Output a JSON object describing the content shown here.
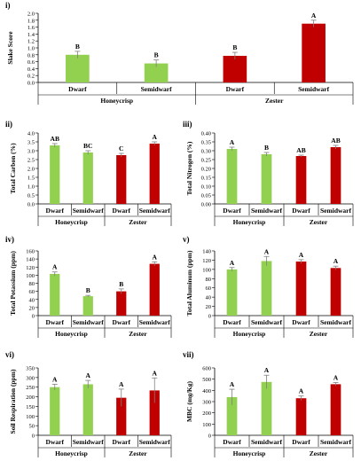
{
  "colors": {
    "honeycrisp": "#92d050",
    "zester": "#c00000",
    "error_bar": "#7f7f7f"
  },
  "chart_data": [
    {
      "id": "i",
      "panel_label": "i)",
      "type": "bar",
      "ylabel": "Slake Score",
      "ylim": [
        0,
        2
      ],
      "ytick_step": 0.2,
      "ytick_decimals": 1,
      "categories": [
        "Dwarf",
        "Semidwarf",
        "Dwarf",
        "Semidwarf"
      ],
      "groups": [
        "Honeycrisp",
        "Zester"
      ],
      "values": [
        0.8,
        0.55,
        0.77,
        1.7
      ],
      "errors": [
        0.1,
        0.1,
        0.1,
        0.1
      ],
      "letters": [
        "B",
        "B",
        "B",
        "A"
      ]
    },
    {
      "id": "ii",
      "panel_label": "ii)",
      "type": "bar",
      "ylabel": "Total Carbon (%)",
      "ylim": [
        0,
        4
      ],
      "ytick_step": 0.5,
      "ytick_decimals": 1,
      "categories": [
        "Dwarf",
        "Semidwarf",
        "Dwarf",
        "Semidwarf"
      ],
      "groups": [
        "Honeycrisp",
        "Zester"
      ],
      "values": [
        3.3,
        2.9,
        2.75,
        3.4
      ],
      "errors": [
        0.1,
        0.1,
        0.1,
        0.1
      ],
      "letters": [
        "AB",
        "BC",
        "C",
        "A"
      ]
    },
    {
      "id": "iii",
      "panel_label": "iii)",
      "type": "bar",
      "ylabel": "Total Nitrogen (%)",
      "ylim": [
        0,
        0.4
      ],
      "ytick_step": 0.05,
      "ytick_decimals": 2,
      "categories": [
        "Dwarf",
        "Semidwarf",
        "Dwarf",
        "Semidwarf"
      ],
      "groups": [
        "Honeycrisp",
        "Zester"
      ],
      "values": [
        0.31,
        0.28,
        0.27,
        0.32
      ],
      "errors": [
        0.01,
        0.01,
        0.005,
        0.01
      ],
      "letters": [
        "A",
        "B",
        "AB",
        "AB"
      ]
    },
    {
      "id": "iv",
      "panel_label": "iv)",
      "type": "bar",
      "ylabel": "Total Potassium (ppm)",
      "ylim": [
        0,
        160
      ],
      "ytick_step": 20,
      "ytick_decimals": 0,
      "categories": [
        "Dwarf",
        "Semidwarf",
        "Dwarf",
        "Semidwarf"
      ],
      "groups": [
        "Honeycrisp",
        "Zester"
      ],
      "values": [
        103,
        48,
        60,
        128
      ],
      "errors": [
        5,
        2,
        6,
        5
      ],
      "letters": [
        "A",
        "B",
        "B",
        "A"
      ]
    },
    {
      "id": "v",
      "panel_label": "v)",
      "type": "bar",
      "ylabel": "Total Aluminum (ppm)",
      "ylim": [
        0,
        140
      ],
      "ytick_step": 20,
      "ytick_decimals": 0,
      "categories": [
        "Dwarf",
        "Semidwarf",
        "Dwarf",
        "Semidwarf"
      ],
      "groups": [
        "Honeycrisp",
        "Zester"
      ],
      "values": [
        100,
        118,
        117,
        103
      ],
      "errors": [
        4,
        10,
        4,
        4
      ],
      "letters": [
        "A",
        "A",
        "A",
        "A"
      ]
    },
    {
      "id": "vi",
      "panel_label": "vi)",
      "type": "bar",
      "ylabel": "Soil Respiration (ppm)",
      "ylim": [
        0,
        350
      ],
      "ytick_step": 50,
      "ytick_decimals": 0,
      "categories": [
        "Dwarf",
        "Semidwarf",
        "Dwarf",
        "Semidwarf"
      ],
      "groups": [
        "Honeycrisp",
        "Zester"
      ],
      "values": [
        250,
        265,
        195,
        233
      ],
      "errors": [
        15,
        20,
        45,
        65
      ],
      "letters": [
        "A",
        "A",
        "A",
        "A"
      ]
    },
    {
      "id": "vii",
      "panel_label": "vii)",
      "type": "bar",
      "ylabel": "MBC (mg/Kg)",
      "ylim": [
        0,
        600
      ],
      "ytick_step": 100,
      "ytick_decimals": 0,
      "categories": [
        "Dwarf",
        "Semidwarf",
        "Dwarf",
        "Semidwarf"
      ],
      "groups": [
        "Honeycrisp",
        "Zester"
      ],
      "values": [
        340,
        475,
        330,
        455
      ],
      "errors": [
        70,
        60,
        20,
        15
      ],
      "letters": [
        "A",
        "A",
        "A",
        "A"
      ]
    }
  ]
}
